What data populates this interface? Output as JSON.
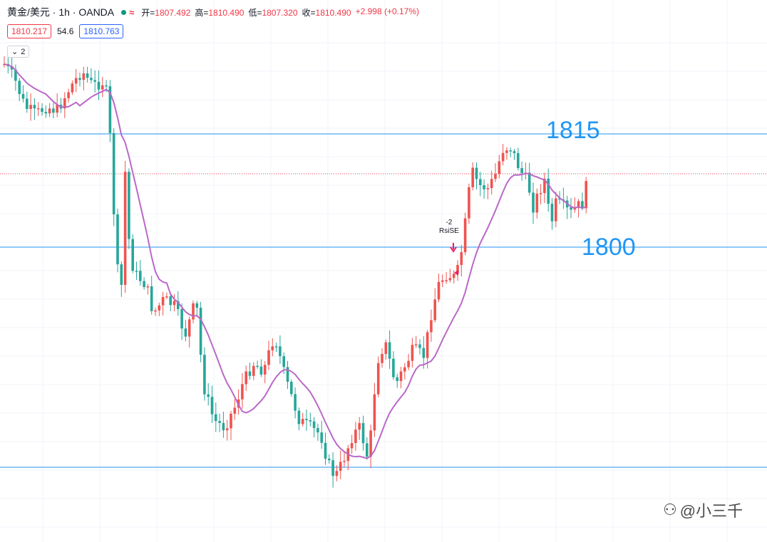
{
  "header": {
    "symbol": "黄金/美元 · 1h · OANDA",
    "market_icon": "circle-dot-icon",
    "status_text": "≈",
    "ohlc": [
      {
        "label": "开=",
        "value": "1807.492"
      },
      {
        "label": "高=",
        "value": "1810.490"
      },
      {
        "label": "低=",
        "value": "1807.320"
      },
      {
        "label": "收=",
        "value": "1810.490"
      }
    ],
    "change": "+2.998 (+0.17%)"
  },
  "quote": {
    "bid": "1810.217",
    "spread": "54.6",
    "ask": "1810.763"
  },
  "collapse_button": {
    "count": "2"
  },
  "levels": {
    "upper_label": "1815",
    "lower_label": "1800"
  },
  "signal": {
    "line1": "-2",
    "line2": "RsiSE"
  },
  "watermark": "@小三千",
  "colors": {
    "up": "#ef5350",
    "down": "#26a69a",
    "ma": "#ba68c8",
    "level_line": "#2196f3",
    "price_line": "#f23645",
    "accent": "#2196f3"
  }
}
